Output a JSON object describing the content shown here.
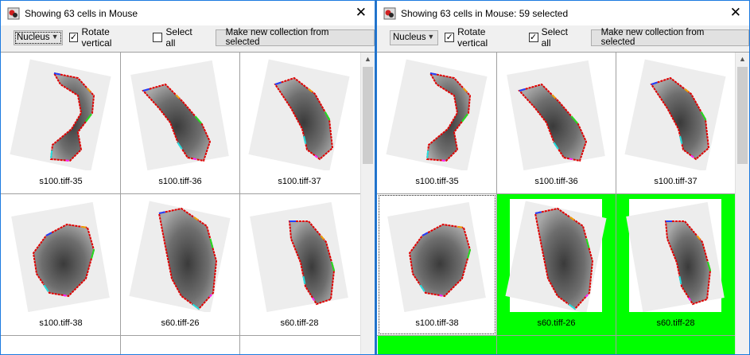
{
  "windows": [
    {
      "title": "Showing 63 cells in Mouse",
      "close": "✕",
      "dropdown_value": "Nucleus",
      "rotate_label": "Rotate vertical",
      "rotate_checked": "✓",
      "selectall_label": "Select all",
      "selectall_checked": "",
      "button_label": "Make new collection from selected",
      "cells": [
        "s100.tiff-35",
        "s100.tiff-36",
        "s100.tiff-37",
        "s100.tiff-38",
        "s60.tiff-26",
        "s60.tiff-28"
      ]
    },
    {
      "title": "Showing 63 cells in Mouse: 59 selected",
      "close": "✕",
      "dropdown_value": "Nucleus",
      "rotate_label": "Rotate vertical",
      "rotate_checked": "✓",
      "selectall_label": "Select all",
      "selectall_checked": "✓",
      "button_label": "Make new collection from selected",
      "cells": [
        "s100.tiff-35",
        "s100.tiff-36",
        "s100.tiff-37",
        "s100.tiff-38",
        "s60.tiff-26",
        "s60.tiff-28"
      ]
    }
  ],
  "colors": {
    "selected": "#00ff00",
    "outline": "#e00000"
  }
}
